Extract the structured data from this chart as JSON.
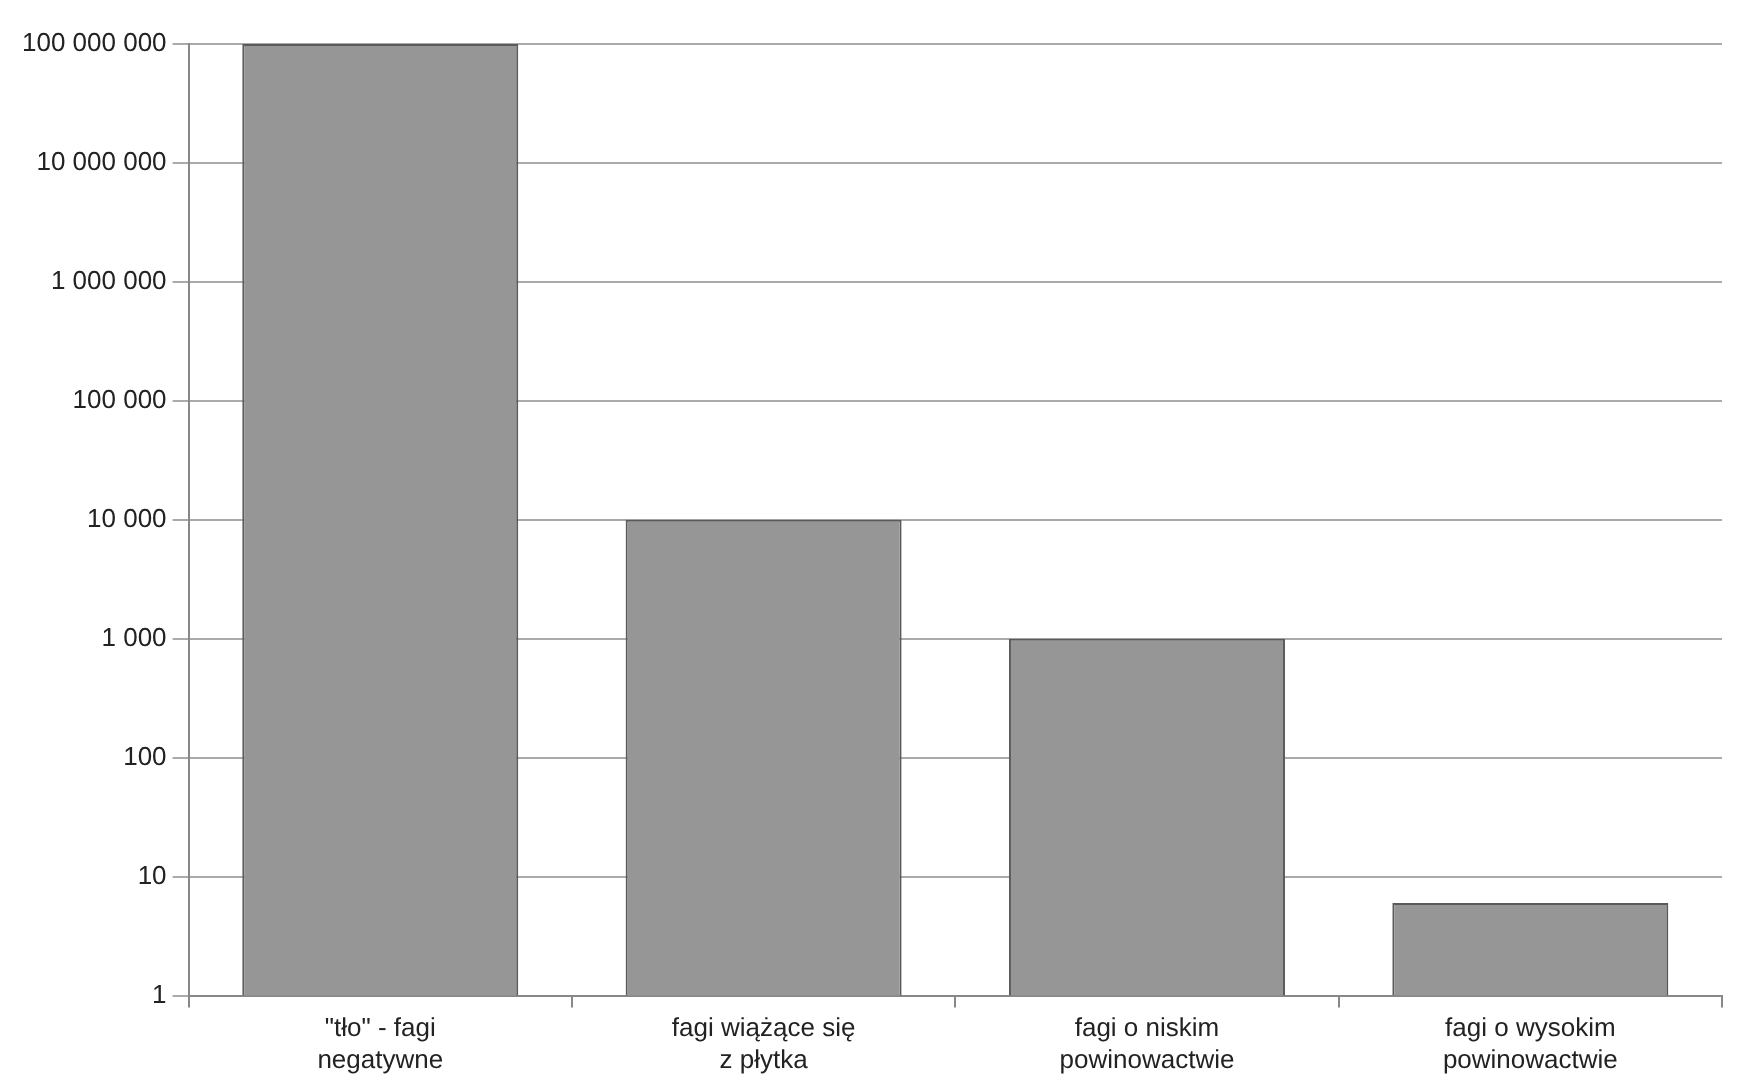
{
  "chart_data": {
    "type": "bar",
    "categories": [
      "\"tło\" - fagi\nnegatywne",
      "fagi wiążące się\nz płytka",
      "fagi o niskim\npowinowactwie",
      "fagi o wysokim\npowinowactwie"
    ],
    "values": [
      100000000,
      10000,
      1000,
      6
    ],
    "color": "#969696",
    "log": true,
    "grid": "y",
    "ylim": [
      1,
      100000000
    ],
    "yticks": [
      {
        "value": 1,
        "label": "1"
      },
      {
        "value": 10,
        "label": "10"
      },
      {
        "value": 100,
        "label": "100"
      },
      {
        "value": 1000,
        "label": "1 000"
      },
      {
        "value": 10000,
        "label": "10 000"
      },
      {
        "value": 100000,
        "label": "100 000"
      },
      {
        "value": 1000000,
        "label": "1 000 000"
      },
      {
        "value": 10000000,
        "label": "10 000 000"
      },
      {
        "value": 100000000,
        "label": "100 000 000"
      }
    ]
  }
}
